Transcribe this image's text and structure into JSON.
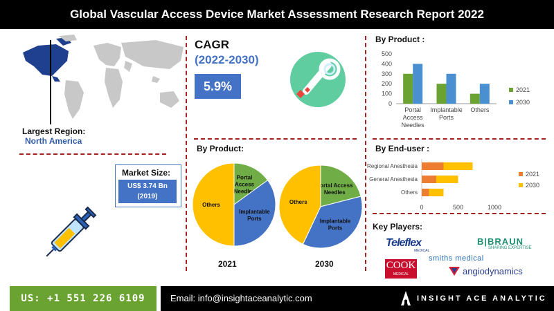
{
  "header": {
    "title": "Global Vascular Access Device Market Assessment Research Report 2022"
  },
  "region": {
    "label": "Largest Region:",
    "value": "North America"
  },
  "market_size": {
    "label": "Market Size:",
    "value_line1": "US$ 3.74 Bn",
    "value_line2": "(2019)"
  },
  "cagr": {
    "label": "CAGR",
    "period": "(2022-2030)",
    "value": "5.9%"
  },
  "sections": {
    "by_product_bar": "By Product :",
    "by_product_pie": "By Product:",
    "by_end_user": "By End-user :",
    "key_players": "Key Players:"
  },
  "chart_data": [
    {
      "type": "bar",
      "title": "By Product :",
      "categories": [
        "Portal Access Needles",
        "Implantable Ports",
        "Others"
      ],
      "category_lines": [
        [
          "Portal",
          "Access",
          "Needles"
        ],
        [
          "Implantable",
          "Ports"
        ],
        [
          "Others"
        ]
      ],
      "series": [
        {
          "name": "2021",
          "values": [
            300,
            200,
            100
          ],
          "color": "#6aa332"
        },
        {
          "name": "2030",
          "values": [
            400,
            300,
            200
          ],
          "color": "#4a90d0"
        }
      ],
      "ylim": [
        0,
        500
      ],
      "yticks": [
        0,
        100,
        200,
        300,
        400,
        500
      ],
      "grid": false,
      "legend": "right"
    },
    {
      "type": "pie",
      "title": "2021",
      "slices": [
        {
          "name": "Portal Access Needles",
          "lines": [
            "Portal",
            "Access",
            "Needles"
          ],
          "value": 15,
          "color": "#70ad47"
        },
        {
          "name": "Implantable Ports",
          "lines": [
            "Implantable",
            "Ports"
          ],
          "value": 35,
          "color": "#4472c4"
        },
        {
          "name": "Others",
          "lines": [
            "Others"
          ],
          "value": 50,
          "color": "#ffc000"
        }
      ]
    },
    {
      "type": "pie",
      "title": "2030",
      "slices": [
        {
          "name": "Portal Access Needles",
          "lines": [
            "Portal Access",
            "Needles"
          ],
          "value": 21,
          "color": "#70ad47"
        },
        {
          "name": "Implantable Ports",
          "lines": [
            "Implantable",
            "Ports"
          ],
          "value": 36,
          "color": "#4472c4"
        },
        {
          "name": "Others",
          "lines": [
            "Others"
          ],
          "value": 43,
          "color": "#ffc000"
        }
      ]
    },
    {
      "type": "bar",
      "orientation": "horizontal",
      "stacked": true,
      "title": "By End-user :",
      "categories": [
        "Regional Anesthesia",
        "General Anesthesia",
        "Others"
      ],
      "series": [
        {
          "name": "2021",
          "values": [
            300,
            200,
            100
          ],
          "color": "#ed7d31"
        },
        {
          "name": "2030",
          "values": [
            400,
            300,
            200
          ],
          "color": "#ffc000"
        }
      ],
      "xlim": [
        0,
        1000
      ],
      "xticks": [
        0,
        500,
        1000
      ],
      "legend": "right"
    }
  ],
  "key_players": {
    "teleflex": "Teleflex",
    "teleflex_sub": "MEDICAL",
    "bbraun": "B|BRAUN",
    "bbraun_sub": "SHARING EXPERTISE",
    "cook": "COOK",
    "cook_sub": "MEDICAL",
    "smiths": "smiths medical",
    "angio": "angiodynamics"
  },
  "footer": {
    "phone": "US: +1 551 226 6109",
    "email": "Email: info@insightaceanalytic.com",
    "brand": "INSIGHT ACE ANALYTIC"
  },
  "colors": {
    "accent_blue": "#4472c4",
    "green": "#70ad47",
    "yellow": "#ffc000",
    "orange": "#ed7d31",
    "divider": "#a32020"
  }
}
